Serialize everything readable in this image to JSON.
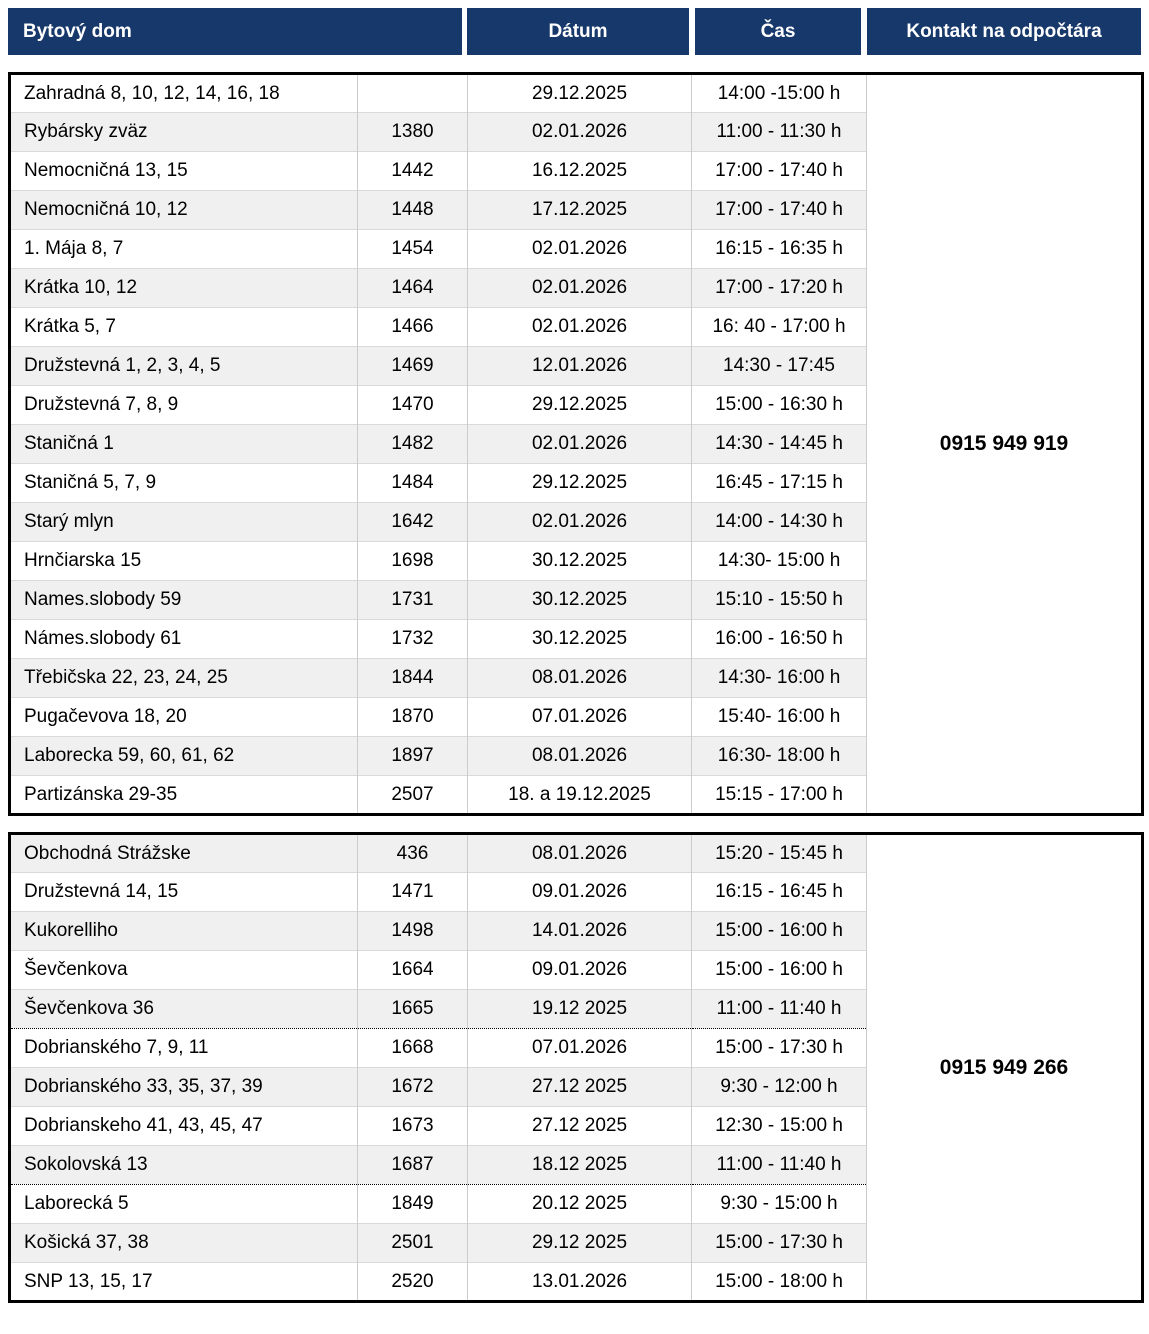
{
  "header": {
    "columns": [
      {
        "label": "Bytový dom"
      },
      {
        "label": "Dátum"
      },
      {
        "label": "Čas"
      },
      {
        "label": "Kontakt na odpočtára"
      }
    ]
  },
  "colors": {
    "header_bg": "#17386b",
    "header_text": "#ffffff",
    "alt_row_bg": "#f0f0f0",
    "outer_border": "#000000",
    "inner_border": "#cccccc"
  },
  "tables": [
    {
      "contact_phone": "0915 949 919",
      "rows": [
        {
          "building": "Zahradná 8, 10, 12, 14, 16, 18",
          "number": "",
          "date": "29.12.2025",
          "time": "14:00 -15:00 h"
        },
        {
          "building": "Rybársky zväz",
          "number": "1380",
          "date": "02.01.2026",
          "time": "11:00 - 11:30 h"
        },
        {
          "building": "Nemocničná 13, 15",
          "number": "1442",
          "date": "16.12.2025",
          "time": "17:00 - 17:40 h"
        },
        {
          "building": "Nemocničná 10, 12",
          "number": "1448",
          "date": "17.12.2025",
          "time": "17:00 - 17:40 h"
        },
        {
          "building": "1. Mája 8, 7",
          "number": "1454",
          "date": "02.01.2026",
          "time": "16:15 - 16:35 h"
        },
        {
          "building": "Krátka 10, 12",
          "number": "1464",
          "date": "02.01.2026",
          "time": "17:00 - 17:20 h"
        },
        {
          "building": "Krátka 5, 7",
          "number": "1466",
          "date": "02.01.2026",
          "time": "16: 40 - 17:00 h"
        },
        {
          "building": "Družstevná  1, 2, 3, 4, 5",
          "number": "1469",
          "date": "12.01.2026",
          "time": "14:30 - 17:45"
        },
        {
          "building": "Družstevná 7, 8, 9",
          "number": "1470",
          "date": "29.12.2025",
          "time": "15:00 - 16:30 h"
        },
        {
          "building": "Staničná 1",
          "number": "1482",
          "date": "02.01.2026",
          "time": "14:30 - 14:45 h"
        },
        {
          "building": "Staničná 5, 7, 9",
          "number": "1484",
          "date": "29.12.2025",
          "time": "16:45 - 17:15 h"
        },
        {
          "building": "Starý mlyn",
          "number": "1642",
          "date": "02.01.2026",
          "time": "14:00 - 14:30 h"
        },
        {
          "building": "Hrnčiarska 15",
          "number": "1698",
          "date": "30.12.2025",
          "time": "14:30- 15:00 h"
        },
        {
          "building": "Names.slobody 59",
          "number": "1731",
          "date": "30.12.2025",
          "time": "15:10 - 15:50 h"
        },
        {
          "building": "Námes.slobody 61",
          "number": "1732",
          "date": "30.12.2025",
          "time": "16:00 - 16:50 h"
        },
        {
          "building": "Třebičska 22, 23, 24, 25",
          "number": "1844",
          "date": "08.01.2026",
          "time": "14:30- 16:00 h"
        },
        {
          "building": "Pugačevova 18, 20",
          "number": "1870",
          "date": "07.01.2026",
          "time": "15:40- 16:00 h"
        },
        {
          "building": "Laborecka 59, 60, 61, 62",
          "number": "1897",
          "date": "08.01.2026",
          "time": "16:30- 18:00 h"
        },
        {
          "building": "Partizánska 29-35",
          "number": "2507",
          "date": "18. a 19.12.2025",
          "time": "15:15 - 17:00 h"
        }
      ]
    },
    {
      "contact_phone": "0915 949 266",
      "rows": [
        {
          "building": "Obchodná Strážske",
          "number": "436",
          "date": "08.01.2026",
          "time": "15:20 - 15:45 h"
        },
        {
          "building": "Družstevná 14, 15",
          "number": "1471",
          "date": "09.01.2026",
          "time": "16:15 - 16:45 h"
        },
        {
          "building": "Kukorelliho",
          "number": "1498",
          "date": "14.01.2026",
          "time": "15:00 - 16:00 h"
        },
        {
          "building": "Ševčenkova",
          "number": "1664",
          "date": "09.01.2026",
          "time": "15:00 - 16:00 h"
        },
        {
          "building": "Ševčenkova 36",
          "number": "1665",
          "date": "19.12 2025",
          "time": "11:00 - 11:40 h"
        },
        {
          "building": "Dobrianského 7, 9, 11",
          "number": "1668",
          "date": "07.01.2026",
          "time": "15:00 - 17:30 h",
          "separator": "dotted"
        },
        {
          "building": "Dobrianského 33, 35, 37, 39",
          "number": "1672",
          "date": "27.12 2025",
          "time": "9:30 - 12:00 h"
        },
        {
          "building": "Dobrianskeho 41, 43, 45, 47",
          "number": "1673",
          "date": "27.12 2025",
          "time": "12:30 - 15:00 h"
        },
        {
          "building": "Sokolovská 13",
          "number": "1687",
          "date": "18.12 2025",
          "time": "11:00 - 11:40 h"
        },
        {
          "building": "Laborecká 5",
          "number": "1849",
          "date": "20.12 2025",
          "time": "9:30 - 15:00 h",
          "separator": "dotted"
        },
        {
          "building": "Košická 37, 38",
          "number": "2501",
          "date": "29.12 2025",
          "time": "15:00 - 17:30 h"
        },
        {
          "building": "SNP 13, 15, 17",
          "number": "2520",
          "date": "13.01.2026",
          "time": "15:00 - 18:00 h"
        }
      ]
    }
  ]
}
